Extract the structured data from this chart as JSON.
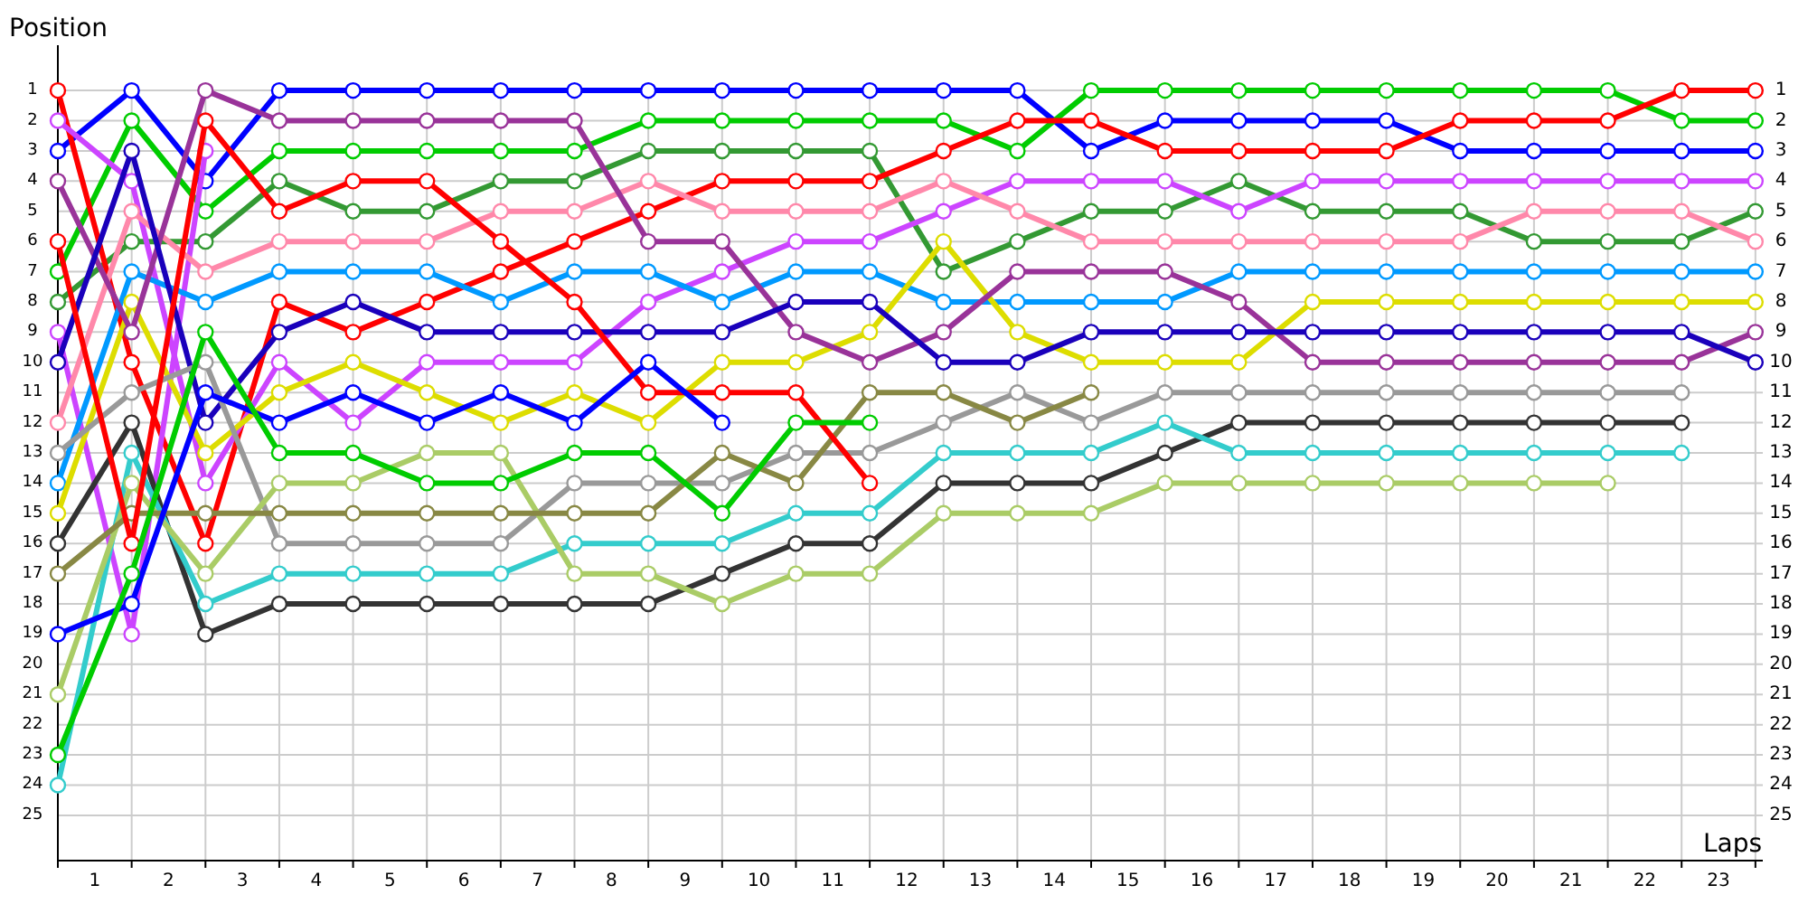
{
  "chart_data": {
    "type": "line",
    "xlabel": "Laps",
    "ylabel": "Position",
    "marker": "circle",
    "grid": true,
    "x": [
      0,
      1,
      2,
      3,
      4,
      5,
      6,
      7,
      8,
      9,
      10,
      11,
      12,
      13,
      14,
      15,
      16,
      17,
      18,
      19,
      20,
      21,
      22,
      23
    ],
    "xlim": [
      0,
      23.1
    ],
    "ylim": [
      26.5,
      -0.5
    ],
    "y2lim": [
      26.5,
      -0.5
    ],
    "xticks": [
      {
        "value": 0,
        "label": null
      },
      {
        "value": 0.5,
        "label": "1"
      },
      {
        "value": 1,
        "label": null
      },
      {
        "value": 1.5,
        "label": "2"
      },
      {
        "value": 2,
        "label": null
      },
      {
        "value": 2.5,
        "label": "3"
      },
      {
        "value": 3,
        "label": null
      },
      {
        "value": 3.5,
        "label": "4"
      },
      {
        "value": 4,
        "label": null
      },
      {
        "value": 4.5,
        "label": "5"
      },
      {
        "value": 5,
        "label": null
      },
      {
        "value": 5.5,
        "label": "6"
      },
      {
        "value": 6,
        "label": null
      },
      {
        "value": 6.5,
        "label": "7"
      },
      {
        "value": 7,
        "label": null
      },
      {
        "value": 7.5,
        "label": "8"
      },
      {
        "value": 8,
        "label": null
      },
      {
        "value": 8.5,
        "label": "9"
      },
      {
        "value": 9,
        "label": null
      },
      {
        "value": 9.5,
        "label": "10"
      },
      {
        "value": 10,
        "label": null
      },
      {
        "value": 10.5,
        "label": "11"
      },
      {
        "value": 11,
        "label": null
      },
      {
        "value": 11.5,
        "label": "12"
      },
      {
        "value": 12,
        "label": null
      },
      {
        "value": 12.5,
        "label": "13"
      },
      {
        "value": 13,
        "label": null
      },
      {
        "value": 13.5,
        "label": "14"
      },
      {
        "value": 14,
        "label": null
      },
      {
        "value": 14.5,
        "label": "15"
      },
      {
        "value": 15,
        "label": null
      },
      {
        "value": 15.5,
        "label": "16"
      },
      {
        "value": 16,
        "label": null
      },
      {
        "value": 16.5,
        "label": "17"
      },
      {
        "value": 17,
        "label": null
      },
      {
        "value": 17.5,
        "label": "18"
      },
      {
        "value": 18,
        "label": null
      },
      {
        "value": 18.5,
        "label": "19"
      },
      {
        "value": 19,
        "label": null
      },
      {
        "value": 19.5,
        "label": "20"
      },
      {
        "value": 20,
        "label": null
      },
      {
        "value": 20.5,
        "label": "21"
      },
      {
        "value": 21,
        "label": null
      },
      {
        "value": 21.5,
        "label": "22"
      },
      {
        "value": 22,
        "label": null
      },
      {
        "value": 22.5,
        "label": "23"
      },
      {
        "value": 23,
        "label": null
      }
    ],
    "yticks": [
      1,
      2,
      3,
      4,
      5,
      6,
      7,
      8,
      9,
      10,
      11,
      12,
      13,
      14,
      15,
      16,
      17,
      18,
      19,
      20,
      21,
      22,
      23,
      24,
      25
    ],
    "y2ticks": [
      1,
      2,
      3,
      4,
      5,
      6,
      7,
      8,
      9,
      10,
      11,
      12,
      13,
      14,
      15,
      16,
      17,
      18,
      19,
      20,
      21,
      22,
      23,
      24,
      25
    ],
    "series": [
      {
        "color": "#0000ff",
        "values": [
          3,
          1,
          4,
          1,
          1,
          1,
          1,
          1,
          1,
          1,
          1,
          1,
          1,
          1,
          3,
          2,
          2,
          2,
          2,
          3,
          3,
          3,
          3,
          3
        ]
      },
      {
        "color": "#00cc00",
        "values": [
          7,
          2,
          5,
          3,
          3,
          3,
          3,
          3,
          2,
          2,
          2,
          2,
          2,
          3,
          1,
          1,
          1,
          1,
          1,
          1,
          1,
          1,
          2,
          2
        ]
      },
      {
        "color": "#339933",
        "values": [
          8,
          6,
          6,
          4,
          5,
          5,
          4,
          4,
          3,
          3,
          3,
          3,
          7,
          6,
          5,
          5,
          4,
          5,
          5,
          5,
          6,
          6,
          6,
          5
        ]
      },
      {
        "color": "#ff0000",
        "values": [
          1,
          10,
          16,
          8,
          9,
          8,
          7,
          6,
          5,
          4,
          4,
          4,
          3,
          2,
          2,
          3,
          3,
          3,
          3,
          2,
          2,
          2,
          1,
          1
        ]
      },
      {
        "color": "#cc44ff",
        "values": [
          2,
          4,
          14,
          10,
          12,
          10,
          10,
          10,
          8,
          7,
          6,
          6,
          5,
          4,
          4,
          4,
          5,
          4,
          4,
          4,
          4,
          4,
          4,
          4
        ]
      },
      {
        "color": "#cc44ff",
        "values": [
          9,
          19,
          3,
          null,
          null,
          null,
          null,
          null,
          null,
          null,
          null,
          null,
          null,
          null,
          null,
          null,
          null,
          null,
          null,
          null,
          null,
          null,
          null,
          null
        ]
      },
      {
        "color": "#ff88aa",
        "values": [
          12,
          5,
          7,
          6,
          6,
          6,
          5,
          5,
          4,
          5,
          5,
          5,
          4,
          5,
          6,
          6,
          6,
          6,
          6,
          6,
          5,
          5,
          5,
          6
        ]
      },
      {
        "color": "#0099ff",
        "values": [
          14,
          7,
          8,
          7,
          7,
          7,
          8,
          7,
          7,
          8,
          7,
          7,
          8,
          8,
          8,
          8,
          7,
          7,
          7,
          7,
          7,
          7,
          7,
          7
        ]
      },
      {
        "color": "#dddd00",
        "values": [
          15,
          8,
          13,
          11,
          10,
          11,
          12,
          11,
          12,
          10,
          10,
          9,
          6,
          9,
          10,
          10,
          10,
          8,
          8,
          8,
          8,
          8,
          8,
          8
        ]
      },
      {
        "color": "#993399",
        "values": [
          4,
          9,
          1,
          2,
          2,
          2,
          2,
          2,
          6,
          6,
          9,
          10,
          9,
          7,
          7,
          7,
          8,
          10,
          10,
          10,
          10,
          10,
          10,
          9
        ]
      },
      {
        "color": "#1a00bb",
        "values": [
          10,
          3,
          12,
          9,
          8,
          9,
          9,
          9,
          9,
          9,
          8,
          8,
          10,
          10,
          9,
          9,
          9,
          9,
          9,
          9,
          9,
          9,
          9,
          10
        ]
      },
      {
        "color": "#999999",
        "values": [
          13,
          11,
          10,
          16,
          16,
          16,
          16,
          14,
          14,
          14,
          13,
          13,
          12,
          11,
          12,
          11,
          11,
          11,
          11,
          11,
          11,
          11,
          11,
          null
        ]
      },
      {
        "color": "#333333",
        "values": [
          16,
          12,
          19,
          18,
          18,
          18,
          18,
          18,
          18,
          17,
          16,
          16,
          14,
          14,
          14,
          13,
          12,
          12,
          12,
          12,
          12,
          12,
          12,
          null
        ]
      },
      {
        "color": "#33cccc",
        "values": [
          24,
          13,
          18,
          17,
          17,
          17,
          17,
          16,
          16,
          16,
          15,
          15,
          13,
          13,
          13,
          12,
          13,
          13,
          13,
          13,
          13,
          13,
          13,
          null
        ]
      },
      {
        "color": "#aacc66",
        "values": [
          21,
          14,
          17,
          14,
          14,
          13,
          13,
          17,
          17,
          18,
          17,
          17,
          15,
          15,
          15,
          14,
          14,
          14,
          14,
          14,
          14,
          14,
          null,
          null
        ]
      },
      {
        "color": "#888844",
        "values": [
          17,
          15,
          15,
          15,
          15,
          15,
          15,
          15,
          15,
          13,
          14,
          11,
          11,
          12,
          11,
          null,
          null,
          null,
          null,
          null,
          null,
          null,
          null,
          null
        ]
      },
      {
        "color": "#ff0000",
        "values": [
          6,
          16,
          2,
          5,
          4,
          4,
          6,
          8,
          11,
          11,
          11,
          14,
          null,
          null,
          null,
          null,
          null,
          null,
          null,
          null,
          null,
          null,
          null,
          null
        ]
      },
      {
        "color": "#0000ff",
        "values": [
          19,
          18,
          11,
          12,
          11,
          12,
          11,
          12,
          10,
          12,
          null,
          null,
          null,
          null,
          null,
          null,
          null,
          null,
          null,
          null,
          null,
          null,
          null,
          null
        ]
      },
      {
        "color": "#00cc00",
        "values": [
          23,
          17,
          9,
          13,
          13,
          14,
          14,
          13,
          13,
          15,
          12,
          12,
          null,
          null,
          null,
          null,
          null,
          null,
          null,
          null,
          null,
          null,
          null,
          null
        ]
      }
    ]
  }
}
